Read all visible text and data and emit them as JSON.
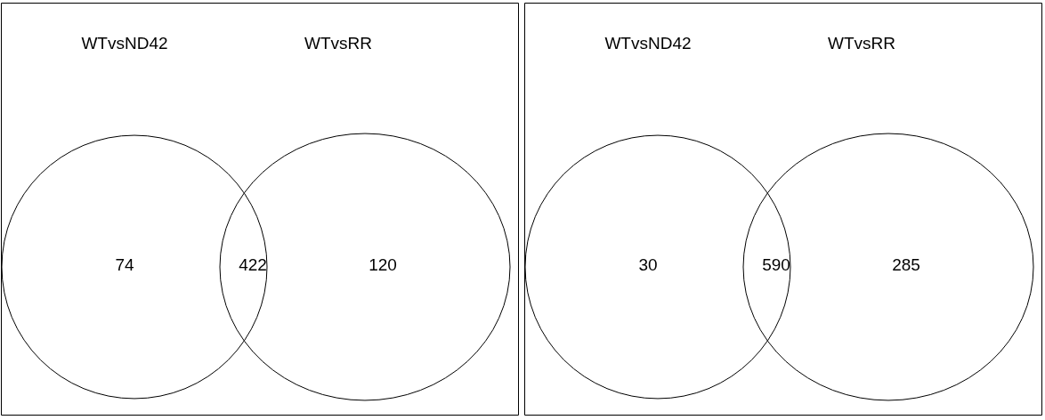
{
  "chart_data": [
    {
      "type": "other",
      "categories": [
        "WTvsND42",
        null,
        "WTvsRR"
      ],
      "values": [
        74,
        422,
        120
      ],
      "data_labels": true
    },
    {
      "type": "other",
      "categories": [
        "WTvsND42",
        null,
        "WTvsRR"
      ],
      "values": [
        30,
        590,
        285
      ],
      "data_labels": true
    }
  ]
}
